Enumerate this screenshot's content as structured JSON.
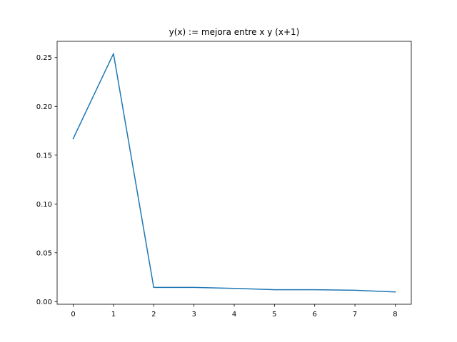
{
  "chart_data": {
    "type": "line",
    "title": "y(x) := mejora entre x y (x+1)",
    "xlabel": "",
    "ylabel": "",
    "xlim": [
      -0.4,
      8.4
    ],
    "ylim": [
      -0.0027,
      0.2666
    ],
    "x_ticks": [
      0,
      1,
      2,
      3,
      4,
      5,
      6,
      7,
      8
    ],
    "x_tick_labels": [
      "0",
      "1",
      "2",
      "3",
      "4",
      "5",
      "6",
      "7",
      "8"
    ],
    "y_ticks": [
      0.0,
      0.05,
      0.1,
      0.15,
      0.2,
      0.25
    ],
    "y_tick_labels": [
      "0.00",
      "0.05",
      "0.10",
      "0.15",
      "0.20",
      "0.25"
    ],
    "grid": false,
    "series": [
      {
        "color": "#1f77b4",
        "x": [
          0,
          1,
          2,
          3,
          4,
          5,
          6,
          7,
          8
        ],
        "y": [
          0.167,
          0.254,
          0.0145,
          0.0145,
          0.0135,
          0.0122,
          0.0122,
          0.0116,
          0.0099
        ]
      }
    ]
  }
}
